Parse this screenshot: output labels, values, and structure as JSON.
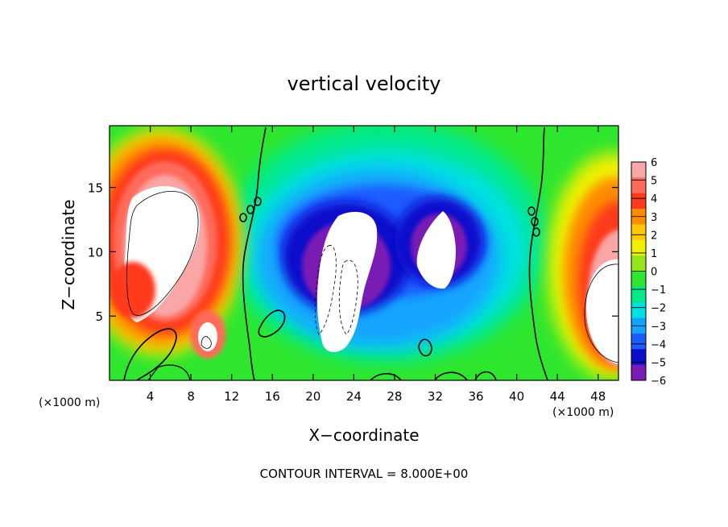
{
  "chart_data": {
    "type": "heatmap",
    "title": "vertical velocity",
    "xlabel": "X−coordinate",
    "ylabel": "Z−coordinate",
    "x_units": "(×1000 m)",
    "x_ticks": [
      4,
      8,
      12,
      16,
      20,
      24,
      28,
      32,
      36,
      40,
      44,
      48
    ],
    "y_ticks": [
      5,
      10,
      15
    ],
    "xlim": [
      0,
      50
    ],
    "ylim": [
      0,
      19.8
    ],
    "colorbar": {
      "ticks": [
        "6",
        "5",
        "4",
        "3",
        "2",
        "1",
        "0",
        "−1",
        "−2",
        "−3",
        "−4",
        "−5",
        "−6"
      ],
      "range": [
        -6,
        6
      ],
      "colors": [
        "#f8a6a6",
        "#ff6a5a",
        "#ff3a1a",
        "#ff8c00",
        "#ffc800",
        "#f0f000",
        "#96e61e",
        "#2ee62e",
        "#00e88a",
        "#00e1e1",
        "#12a4ff",
        "#1b5cff",
        "#0d0dcc",
        "#7a1ab4"
      ]
    },
    "footer": "CONTOUR INTERVAL = 8.000E+00",
    "contour_interval": 8,
    "features": [
      {
        "kind": "updraft_core",
        "x": 6,
        "z": 11.5,
        "peak": 8
      },
      {
        "kind": "updraft",
        "x": 3,
        "z": 6,
        "peak": 5
      },
      {
        "kind": "updraft",
        "x": 9.5,
        "z": 3,
        "peak": 7
      },
      {
        "kind": "updraft_core",
        "x": 48,
        "z": 7,
        "peak": 8
      },
      {
        "kind": "downdraft_core",
        "x": 23,
        "z": 7.5,
        "peak": -8
      },
      {
        "kind": "downdraft_core",
        "x": 32.5,
        "z": 10.5,
        "peak": -8
      }
    ]
  }
}
